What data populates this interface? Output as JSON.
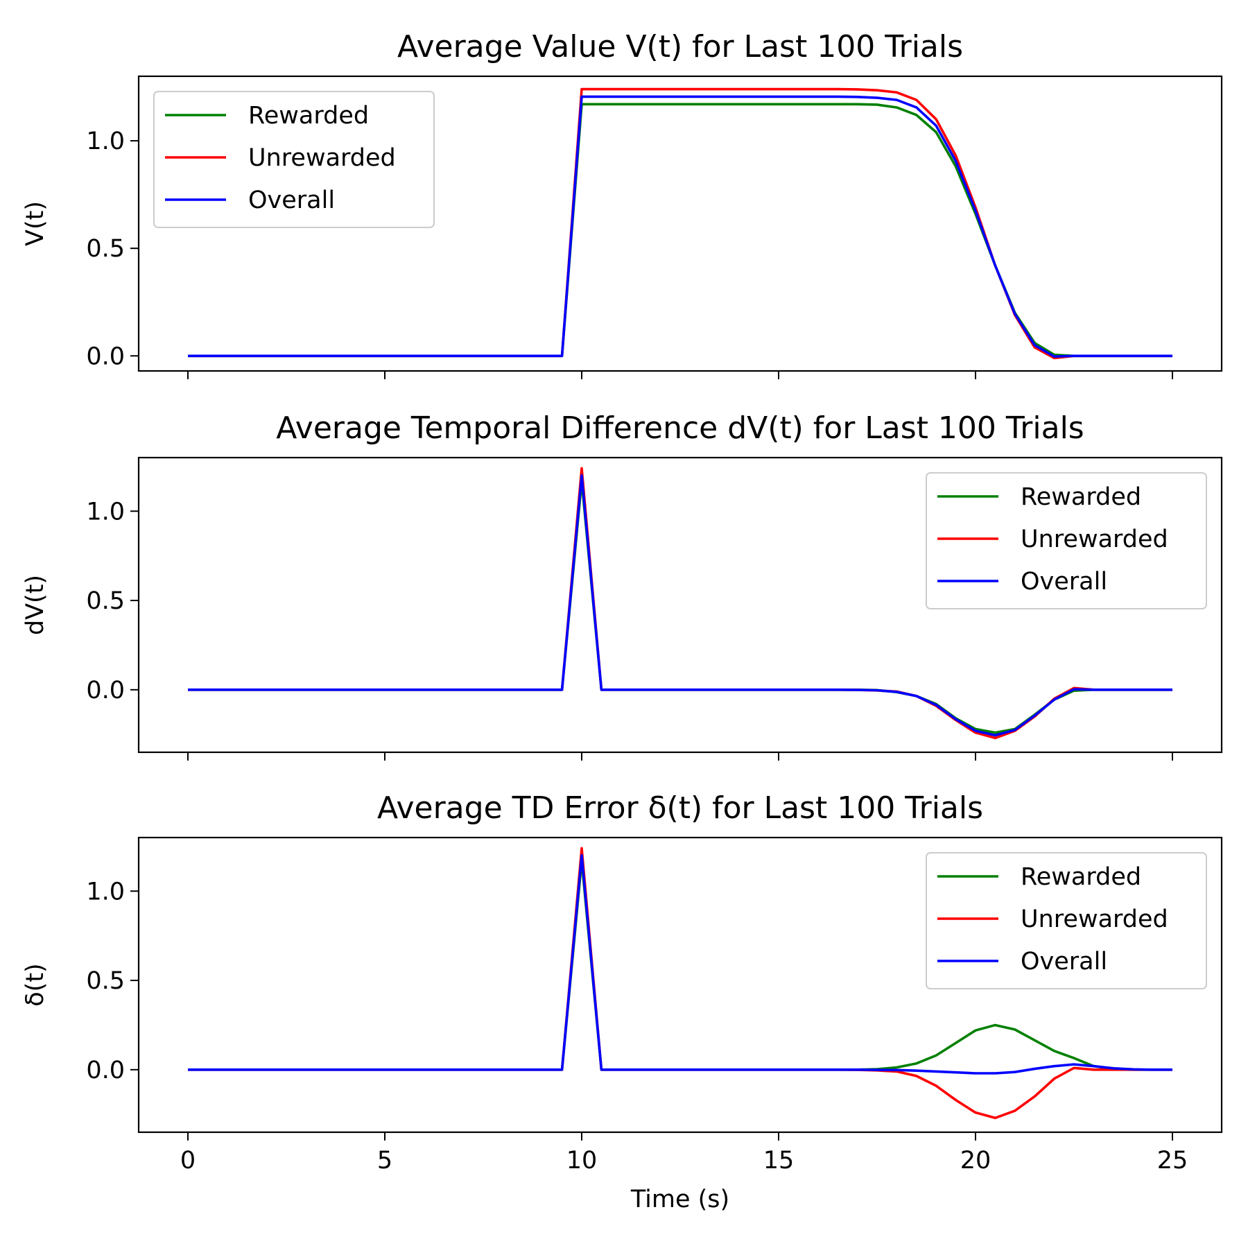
{
  "chart_data": [
    {
      "type": "line",
      "title": "Average Value V(t) for Last 100 Trials",
      "xlabel": "",
      "ylabel": "V(t)",
      "xlim": [
        -1.25,
        26.25
      ],
      "ylim": [
        -0.07,
        1.3
      ],
      "xticks": [
        0,
        5,
        10,
        15,
        20,
        25
      ],
      "yticks": [
        0.0,
        0.5,
        1.0
      ],
      "ytick_labels": [
        "0.0",
        "0.5",
        "1.0"
      ],
      "show_xtick_labels": false,
      "legend": {
        "position": "top-left",
        "entries": [
          "Rewarded",
          "Unrewarded",
          "Overall"
        ]
      },
      "x": [
        0,
        0.5,
        1,
        1.5,
        2,
        2.5,
        3,
        3.5,
        4,
        4.5,
        5,
        5.5,
        6,
        6.5,
        7,
        7.5,
        8,
        8.5,
        9,
        9.5,
        10,
        10.5,
        11,
        11.5,
        12,
        12.5,
        13,
        13.5,
        14,
        14.5,
        15,
        15.5,
        16,
        16.5,
        17,
        17.5,
        18,
        18.5,
        19,
        19.5,
        20,
        20.5,
        21,
        21.5,
        22,
        22.5,
        23,
        23.5,
        24,
        24.5,
        25
      ],
      "series": [
        {
          "name": "Rewarded",
          "color": "#008000",
          "values": [
            0,
            0,
            0,
            0,
            0,
            0,
            0,
            0,
            0,
            0,
            0,
            0,
            0,
            0,
            0,
            0,
            0,
            0,
            0,
            0,
            1.17,
            1.17,
            1.17,
            1.17,
            1.17,
            1.17,
            1.17,
            1.17,
            1.17,
            1.17,
            1.17,
            1.17,
            1.17,
            1.17,
            1.17,
            1.168,
            1.155,
            1.12,
            1.04,
            0.88,
            0.66,
            0.42,
            0.2,
            0.06,
            0.005,
            0,
            0,
            0,
            0,
            0,
            0
          ]
        },
        {
          "name": "Unrewarded",
          "color": "#ff0000",
          "values": [
            0,
            0,
            0,
            0,
            0,
            0,
            0,
            0,
            0,
            0,
            0,
            0,
            0,
            0,
            0,
            0,
            0,
            0,
            0,
            0,
            1.24,
            1.24,
            1.24,
            1.24,
            1.24,
            1.24,
            1.24,
            1.24,
            1.24,
            1.24,
            1.24,
            1.24,
            1.24,
            1.24,
            1.239,
            1.235,
            1.225,
            1.19,
            1.1,
            0.93,
            0.69,
            0.42,
            0.19,
            0.04,
            -0.01,
            0,
            0,
            0,
            0,
            0,
            0
          ]
        },
        {
          "name": "Overall",
          "color": "#0000ff",
          "values": [
            0,
            0,
            0,
            0,
            0,
            0,
            0,
            0,
            0,
            0,
            0,
            0,
            0,
            0,
            0,
            0,
            0,
            0,
            0,
            0,
            1.205,
            1.205,
            1.205,
            1.205,
            1.205,
            1.205,
            1.205,
            1.205,
            1.205,
            1.205,
            1.205,
            1.205,
            1.205,
            1.205,
            1.204,
            1.2,
            1.19,
            1.155,
            1.07,
            0.905,
            0.675,
            0.42,
            0.195,
            0.05,
            -0.003,
            0,
            0,
            0,
            0,
            0,
            0
          ]
        }
      ]
    },
    {
      "type": "line",
      "title": "Average Temporal Difference dV(t) for Last 100 Trials",
      "xlabel": "",
      "ylabel": "dV(t)",
      "xlim": [
        -1.25,
        26.25
      ],
      "ylim": [
        -0.35,
        1.3
      ],
      "xticks": [
        0,
        5,
        10,
        15,
        20,
        25
      ],
      "yticks": [
        0.0,
        0.5,
        1.0
      ],
      "ytick_labels": [
        "0.0",
        "0.5",
        "1.0"
      ],
      "show_xtick_labels": false,
      "legend": {
        "position": "top-right",
        "entries": [
          "Rewarded",
          "Unrewarded",
          "Overall"
        ]
      },
      "x": [
        0,
        0.5,
        1,
        1.5,
        2,
        2.5,
        3,
        3.5,
        4,
        4.5,
        5,
        5.5,
        6,
        6.5,
        7,
        7.5,
        8,
        8.5,
        9,
        9.5,
        10,
        10.5,
        11,
        11.5,
        12,
        12.5,
        13,
        13.5,
        14,
        14.5,
        15,
        15.5,
        16,
        16.5,
        17,
        17.5,
        18,
        18.5,
        19,
        19.5,
        20,
        20.5,
        21,
        21.5,
        22,
        22.5,
        23,
        23.5,
        24,
        24.5,
        25
      ],
      "series": [
        {
          "name": "Rewarded",
          "color": "#008000",
          "values": [
            0,
            0,
            0,
            0,
            0,
            0,
            0,
            0,
            0,
            0,
            0,
            0,
            0,
            0,
            0,
            0,
            0,
            0,
            0,
            0,
            1.17,
            0,
            0,
            0,
            0,
            0,
            0,
            0,
            0,
            0,
            0,
            0,
            0,
            0,
            0,
            -0.002,
            -0.013,
            -0.035,
            -0.08,
            -0.16,
            -0.22,
            -0.24,
            -0.22,
            -0.14,
            -0.055,
            -0.005,
            0,
            0,
            0,
            0,
            0
          ]
        },
        {
          "name": "Unrewarded",
          "color": "#ff0000",
          "values": [
            0,
            0,
            0,
            0,
            0,
            0,
            0,
            0,
            0,
            0,
            0,
            0,
            0,
            0,
            0,
            0,
            0,
            0,
            0,
            0,
            1.24,
            0,
            0,
            0,
            0,
            0,
            0,
            0,
            0,
            0,
            0,
            0,
            0,
            0,
            -0.001,
            -0.004,
            -0.01,
            -0.035,
            -0.09,
            -0.17,
            -0.24,
            -0.27,
            -0.23,
            -0.15,
            -0.05,
            0.01,
            0,
            0,
            0,
            0,
            0
          ]
        },
        {
          "name": "Overall",
          "color": "#0000ff",
          "values": [
            0,
            0,
            0,
            0,
            0,
            0,
            0,
            0,
            0,
            0,
            0,
            0,
            0,
            0,
            0,
            0,
            0,
            0,
            0,
            0,
            1.2,
            0,
            0,
            0,
            0,
            0,
            0,
            0,
            0,
            0,
            0,
            0,
            0,
            0,
            -0.001,
            -0.003,
            -0.012,
            -0.035,
            -0.085,
            -0.165,
            -0.23,
            -0.255,
            -0.225,
            -0.145,
            -0.055,
            0.003,
            0,
            0,
            0,
            0,
            0
          ]
        }
      ]
    },
    {
      "type": "line",
      "title": "Average TD Error δ(t) for Last 100 Trials",
      "xlabel": "Time (s)",
      "ylabel": "δ(t)",
      "xlim": [
        -1.25,
        26.25
      ],
      "ylim": [
        -0.35,
        1.3
      ],
      "xticks": [
        0,
        5,
        10,
        15,
        20,
        25
      ],
      "yticks": [
        0.0,
        0.5,
        1.0
      ],
      "ytick_labels": [
        "0.0",
        "0.5",
        "1.0"
      ],
      "xtick_labels": [
        "0",
        "5",
        "10",
        "15",
        "20",
        "25"
      ],
      "show_xtick_labels": true,
      "legend": {
        "position": "top-right",
        "entries": [
          "Rewarded",
          "Unrewarded",
          "Overall"
        ]
      },
      "x": [
        0,
        0.5,
        1,
        1.5,
        2,
        2.5,
        3,
        3.5,
        4,
        4.5,
        5,
        5.5,
        6,
        6.5,
        7,
        7.5,
        8,
        8.5,
        9,
        9.5,
        10,
        10.5,
        11,
        11.5,
        12,
        12.5,
        13,
        13.5,
        14,
        14.5,
        15,
        15.5,
        16,
        16.5,
        17,
        17.5,
        18,
        18.5,
        19,
        19.5,
        20,
        20.5,
        21,
        21.5,
        22,
        22.5,
        23,
        23.5,
        24,
        24.5,
        25
      ],
      "series": [
        {
          "name": "Rewarded",
          "color": "#008000",
          "values": [
            0,
            0,
            0,
            0,
            0,
            0,
            0,
            0,
            0,
            0,
            0,
            0,
            0,
            0,
            0,
            0,
            0,
            0,
            0,
            0,
            1.17,
            0,
            0,
            0,
            0,
            0,
            0,
            0,
            0,
            0,
            0,
            0,
            0,
            0,
            0,
            0.003,
            0.013,
            0.035,
            0.08,
            0.15,
            0.22,
            0.25,
            0.225,
            0.165,
            0.105,
            0.065,
            0.02,
            0.005,
            0,
            0,
            0
          ]
        },
        {
          "name": "Unrewarded",
          "color": "#ff0000",
          "values": [
            0,
            0,
            0,
            0,
            0,
            0,
            0,
            0,
            0,
            0,
            0,
            0,
            0,
            0,
            0,
            0,
            0,
            0,
            0,
            0,
            1.24,
            0,
            0,
            0,
            0,
            0,
            0,
            0,
            0,
            0,
            0,
            0,
            0,
            0,
            -0.001,
            -0.004,
            -0.01,
            -0.035,
            -0.09,
            -0.17,
            -0.24,
            -0.27,
            -0.23,
            -0.15,
            -0.05,
            0.01,
            0,
            0,
            0,
            0,
            0
          ]
        },
        {
          "name": "Overall",
          "color": "#0000ff",
          "values": [
            0,
            0,
            0,
            0,
            0,
            0,
            0,
            0,
            0,
            0,
            0,
            0,
            0,
            0,
            0,
            0,
            0,
            0,
            0,
            0,
            1.2,
            0,
            0,
            0,
            0,
            0,
            0,
            0,
            0,
            0,
            0,
            0,
            0,
            0,
            0,
            -0.001,
            -0.002,
            -0.005,
            -0.01,
            -0.015,
            -0.02,
            -0.02,
            -0.013,
            0.005,
            0.02,
            0.03,
            0.02,
            0.008,
            0.002,
            0,
            0
          ]
        }
      ]
    }
  ]
}
